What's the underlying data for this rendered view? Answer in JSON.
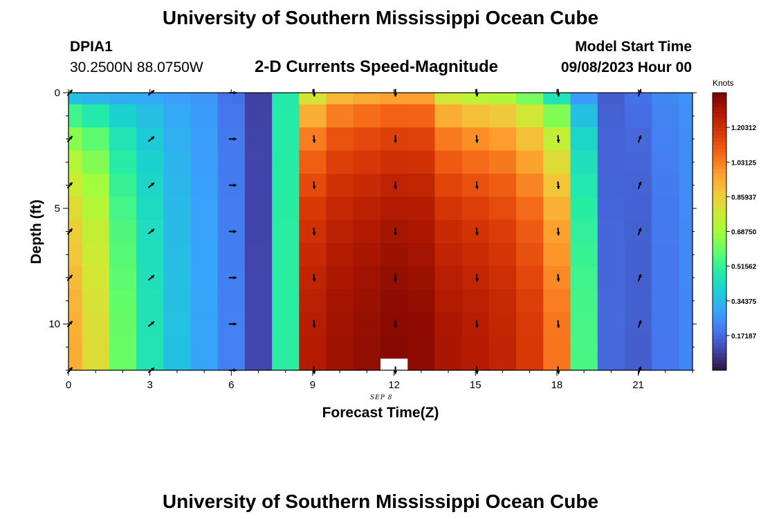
{
  "header": {
    "title": "University of Southern Mississippi Ocean Cube",
    "station": "DPIA1",
    "location": "30.2500N  88.0750W",
    "subtitle": "2-D Currents Speed-Magnitude",
    "model_start_label": "Model Start Time",
    "model_start_value": "09/08/2023 Hour 00"
  },
  "footer": {
    "title": "University of Southern Mississippi Ocean Cube"
  },
  "chart_data": {
    "type": "heatmap",
    "title": "2-D Currents Speed-Magnitude",
    "xlabel": "Forecast Time(Z)",
    "ylabel": "Depth (ft)",
    "date_label": "SEP 8",
    "units": "Knots",
    "xlim": [
      0,
      23
    ],
    "ylim": [
      0,
      12
    ],
    "x_ticks": [
      "0",
      "3",
      "6",
      "9",
      "12",
      "15",
      "18",
      "21"
    ],
    "y_ticks": [
      "0",
      "5",
      "10"
    ],
    "colorbar": {
      "min": 0.0,
      "max": 1.375,
      "ticks": [
        "0.17187",
        "0.34375",
        "0.51562",
        "0.68750",
        "0.85937",
        "1.03125",
        "1.20312"
      ],
      "colors": [
        "#30123b",
        "#4145ab",
        "#4675ed",
        "#39a2fc",
        "#1bcfd4",
        "#24eca6",
        "#61fc6c",
        "#a4fc3b",
        "#d1e834",
        "#f3c63a",
        "#fe9b2d",
        "#f36315",
        "#d93806",
        "#b11901",
        "#7a0402"
      ]
    },
    "speed_hours": [
      0,
      1,
      2,
      3,
      4,
      5,
      6,
      7,
      8,
      9,
      10,
      11,
      12,
      13,
      14,
      15,
      16,
      17,
      18,
      19,
      20,
      21,
      22,
      23
    ],
    "speed_profiles": {
      "surface": [
        0.36,
        0.34,
        0.32,
        0.31,
        0.29,
        0.27,
        0.19,
        0.09,
        0.48,
        0.8,
        0.92,
        0.95,
        0.97,
        0.97,
        0.79,
        0.74,
        0.72,
        0.62,
        0.46,
        0.28,
        0.15,
        0.19,
        0.24,
        0.26
      ],
      "bottom": [
        0.94,
        0.82,
        0.6,
        0.46,
        0.36,
        0.3,
        0.22,
        0.1,
        0.5,
        1.27,
        1.31,
        1.33,
        1.35,
        1.34,
        1.29,
        1.27,
        1.24,
        1.18,
        1.05,
        0.55,
        0.17,
        0.15,
        0.2,
        0.24
      ],
      "shape": [
        0.0,
        0.3,
        0.5,
        0.62,
        0.72,
        0.8,
        0.86,
        0.9,
        0.94,
        0.97,
        0.99,
        1.0
      ]
    },
    "current_arrows": {
      "hours": [
        0,
        3,
        6,
        9,
        12,
        15,
        18,
        21
      ],
      "direction_deg": [
        40,
        50,
        90,
        175,
        180,
        175,
        175,
        20
      ]
    },
    "missing_cell": {
      "hour": 12,
      "depth": 12
    }
  }
}
